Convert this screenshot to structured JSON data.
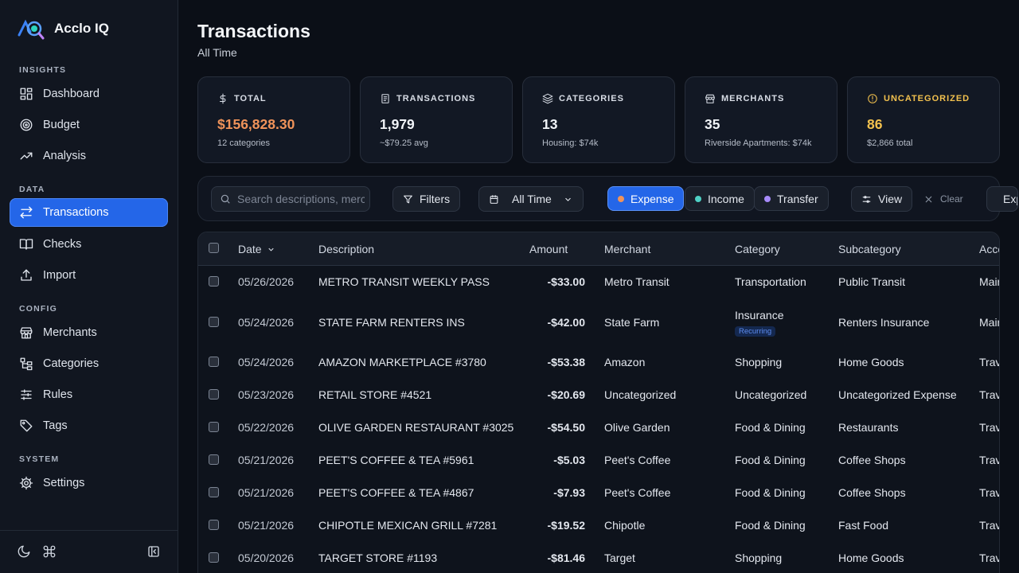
{
  "app": {
    "name": "Acclo IQ"
  },
  "sidebar": {
    "sections": [
      {
        "label": "INSIGHTS",
        "items": [
          {
            "label": "Dashboard",
            "icon": "dashboard-icon"
          },
          {
            "label": "Budget",
            "icon": "target-icon"
          },
          {
            "label": "Analysis",
            "icon": "trend-icon"
          }
        ]
      },
      {
        "label": "DATA",
        "items": [
          {
            "label": "Transactions",
            "icon": "transfer-icon",
            "active": true
          },
          {
            "label": "Checks",
            "icon": "book-icon"
          },
          {
            "label": "Import",
            "icon": "upload-icon"
          }
        ]
      },
      {
        "label": "CONFIG",
        "items": [
          {
            "label": "Merchants",
            "icon": "store-icon"
          },
          {
            "label": "Categories",
            "icon": "tree-icon"
          },
          {
            "label": "Rules",
            "icon": "sliders-icon"
          },
          {
            "label": "Tags",
            "icon": "tag-icon"
          }
        ]
      },
      {
        "label": "SYSTEM",
        "items": [
          {
            "label": "Settings",
            "icon": "gear-icon"
          }
        ]
      }
    ]
  },
  "page": {
    "title": "Transactions",
    "subtitle": "All Time"
  },
  "stats": [
    {
      "label": "TOTAL",
      "value": "$156,828.30",
      "sub": "12 categories",
      "icon": "dollar-icon",
      "accent": "#f0935a"
    },
    {
      "label": "TRANSACTIONS",
      "value": "1,979",
      "sub": "~$79.25 avg",
      "icon": "receipt-icon",
      "accent": "#f1f4f8"
    },
    {
      "label": "CATEGORIES",
      "value": "13",
      "sub": "Housing: $74k",
      "icon": "layers-icon",
      "accent": "#f1f4f8"
    },
    {
      "label": "MERCHANTS",
      "value": "35",
      "sub": "Riverside Apartments: $74k",
      "icon": "store-icon",
      "accent": "#f1f4f8"
    },
    {
      "label": "UNCATEGORIZED",
      "value": "86",
      "sub": "$2,866 total",
      "icon": "alert-icon",
      "accent": "#f2c14e"
    }
  ],
  "toolbar": {
    "search_placeholder": "Search descriptions, merchants...",
    "filters_label": "Filters",
    "date_range": "All Time",
    "type_expense": "Expense",
    "type_income": "Income",
    "type_transfer": "Transfer",
    "view_label": "View",
    "clear_label": "Clear",
    "export_label": "Export"
  },
  "colors": {
    "expense_dot": "#f0935a",
    "income_dot": "#4fd1c5",
    "transfer_dot": "#a78bfa",
    "accent": "#2466e8"
  },
  "table": {
    "columns": [
      "Date",
      "Description",
      "Amount",
      "Merchant",
      "Category",
      "Subcategory",
      "Account"
    ],
    "sort_column": "Date",
    "rows": [
      {
        "date": "05/26/2026",
        "description": "METRO TRANSIT WEEKLY PASS",
        "amount": "-$33.00",
        "merchant": "Metro Transit",
        "category": "Transportation",
        "subcategory": "Public Transit",
        "account": "Main Checking"
      },
      {
        "date": "05/24/2026",
        "description": "STATE FARM RENTERS INS",
        "amount": "-$42.00",
        "merchant": "State Farm",
        "category": "Insurance",
        "badge": "Recurring",
        "subcategory": "Renters Insurance",
        "account": "Main Checking"
      },
      {
        "date": "05/24/2026",
        "description": "AMAZON MARKETPLACE #3780",
        "amount": "-$53.38",
        "merchant": "Amazon",
        "category": "Shopping",
        "subcategory": "Home Goods",
        "account": "Travel Card"
      },
      {
        "date": "05/23/2026",
        "description": "RETAIL STORE #4521",
        "amount": "-$20.69",
        "merchant": "Uncategorized",
        "category": "Uncategorized",
        "subcategory": "Uncategorized Expense",
        "account": "Travel Card"
      },
      {
        "date": "05/22/2026",
        "description": "OLIVE GARDEN RESTAURANT #3025",
        "amount": "-$54.50",
        "merchant": "Olive Garden",
        "category": "Food & Dining",
        "subcategory": "Restaurants",
        "account": "Travel Card"
      },
      {
        "date": "05/21/2026",
        "description": "PEET'S COFFEE & TEA #5961",
        "amount": "-$5.03",
        "merchant": "Peet's Coffee",
        "category": "Food & Dining",
        "subcategory": "Coffee Shops",
        "account": "Travel Card"
      },
      {
        "date": "05/21/2026",
        "description": "PEET'S COFFEE & TEA #4867",
        "amount": "-$7.93",
        "merchant": "Peet's Coffee",
        "category": "Food & Dining",
        "subcategory": "Coffee Shops",
        "account": "Travel Card"
      },
      {
        "date": "05/21/2026",
        "description": "CHIPOTLE MEXICAN GRILL #7281",
        "amount": "-$19.52",
        "merchant": "Chipotle",
        "category": "Food & Dining",
        "subcategory": "Fast Food",
        "account": "Travel Card"
      },
      {
        "date": "05/20/2026",
        "description": "TARGET STORE #1193",
        "amount": "-$81.46",
        "merchant": "Target",
        "category": "Shopping",
        "subcategory": "Home Goods",
        "account": "Travel Card"
      }
    ]
  }
}
